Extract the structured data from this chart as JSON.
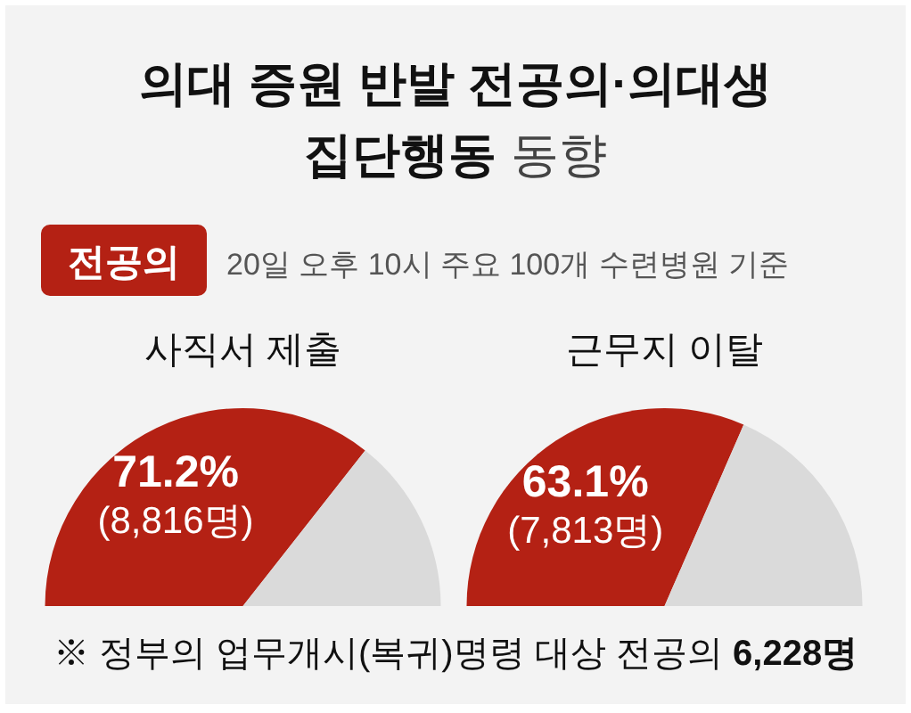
{
  "chart_data": [
    {
      "type": "other",
      "title": "의대 증원 반발 전공의·의대생 집단행동 동향",
      "subtitle": "20일 오후 10시 주요 100개 수련병원 기준",
      "annotations": [
        "전공의",
        "※ 정부의 업무개시(복귀)명령 대상 전공의 6,228명"
      ]
    },
    {
      "type": "pie",
      "title": "사직서 제출",
      "categories": [
        null,
        null
      ],
      "values": [
        71.2,
        28.8
      ],
      "colors": [
        "#b42114",
        "#dadada"
      ],
      "value_labels": [
        "71.2%\n(8,816명)",
        null
      ]
    },
    {
      "type": "pie",
      "title": "근무지 이탈",
      "categories": [
        null,
        null
      ],
      "values": [
        63.1,
        36.9
      ],
      "colors": [
        "#b42114",
        "#dadada"
      ],
      "value_labels": [
        "63.1%\n(7,813명)",
        null
      ]
    }
  ]
}
